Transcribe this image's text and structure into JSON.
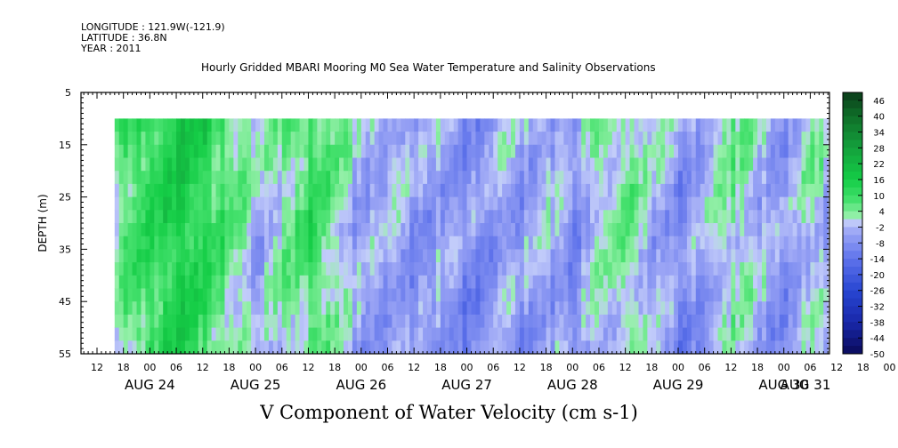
{
  "header": {
    "longitude": "LONGITUDE : 121.9W(-121.9)",
    "latitude": "LATITUDE : 36.8N",
    "year": "YEAR : 2011"
  },
  "chart_data": {
    "type": "heatmap",
    "title": "Hourly Gridded MBARI Mooring M0 Sea Water Temperature and Salinity Observations",
    "bottom_title": "V Component of Water Velocity (cm s-1)",
    "ylabel": "DEPTH (m)",
    "ylim": [
      5,
      55
    ],
    "y_inverted": true,
    "y_ticks": [
      5,
      15,
      25,
      35,
      45,
      55
    ],
    "x_hour_labels": [
      "12",
      "18",
      "00",
      "06",
      "12",
      "18",
      "00",
      "06",
      "12",
      "18",
      "00",
      "06",
      "12",
      "18",
      "00",
      "06",
      "12",
      "18",
      "00",
      "06",
      "12",
      "18",
      "00",
      "06",
      "12",
      "18",
      "00",
      "06",
      "12",
      "18",
      "00",
      "06"
    ],
    "x_day_labels": [
      "AUG 24",
      "AUG 25",
      "AUG 26",
      "AUG 27",
      "AUG 28",
      "AUG 29",
      "AUG 30",
      "AUG 31"
    ],
    "data_depth_range": [
      10,
      55
    ],
    "colorbar": {
      "labels": [
        "46",
        "40",
        "34",
        "28",
        "22",
        "16",
        "10",
        "4",
        "-2",
        "-8",
        "-14",
        "-20",
        "-26",
        "-32",
        "-38",
        "-44",
        "-50"
      ],
      "range": [
        -50,
        49
      ]
    },
    "positive_color": "#00dd22",
    "negative_color": "#7788ee",
    "time_profile": [
      {
        "t": "AUG 24 16",
        "v": 4
      },
      {
        "t": "AUG 24 20",
        "v": 8
      },
      {
        "t": "AUG 25 00",
        "v": 10
      },
      {
        "t": "AUG 25 06",
        "v": 16
      },
      {
        "t": "AUG 25 12",
        "v": 12
      },
      {
        "t": "AUG 25 18",
        "v": 6
      },
      {
        "t": "AUG 26 00",
        "v": -3
      },
      {
        "t": "AUG 26 06",
        "v": 4
      },
      {
        "t": "AUG 26 12",
        "v": 10
      },
      {
        "t": "AUG 26 18",
        "v": 3
      },
      {
        "t": "AUG 27 00",
        "v": -6
      },
      {
        "t": "AUG 27 06",
        "v": -2
      },
      {
        "t": "AUG 27 12",
        "v": -8
      },
      {
        "t": "AUG 27 18",
        "v": -4
      },
      {
        "t": "AUG 28 00",
        "v": -10
      },
      {
        "t": "AUG 28 06",
        "v": -5
      },
      {
        "t": "AUG 28 12",
        "v": -6
      },
      {
        "t": "AUG 28 18",
        "v": -3
      },
      {
        "t": "AUG 29 00",
        "v": -7
      },
      {
        "t": "AUG 29 06",
        "v": 2
      },
      {
        "t": "AUG 29 12",
        "v": 4
      },
      {
        "t": "AUG 29 18",
        "v": -3
      },
      {
        "t": "AUG 30 00",
        "v": -8
      },
      {
        "t": "AUG 30 06",
        "v": -4
      },
      {
        "t": "AUG 30 12",
        "v": 3
      },
      {
        "t": "AUG 30 18",
        "v": -2
      },
      {
        "t": "AUG 31 00",
        "v": -6
      },
      {
        "t": "AUG 31 06",
        "v": 2
      },
      {
        "t": "AUG 31 10",
        "v": -2
      }
    ]
  }
}
